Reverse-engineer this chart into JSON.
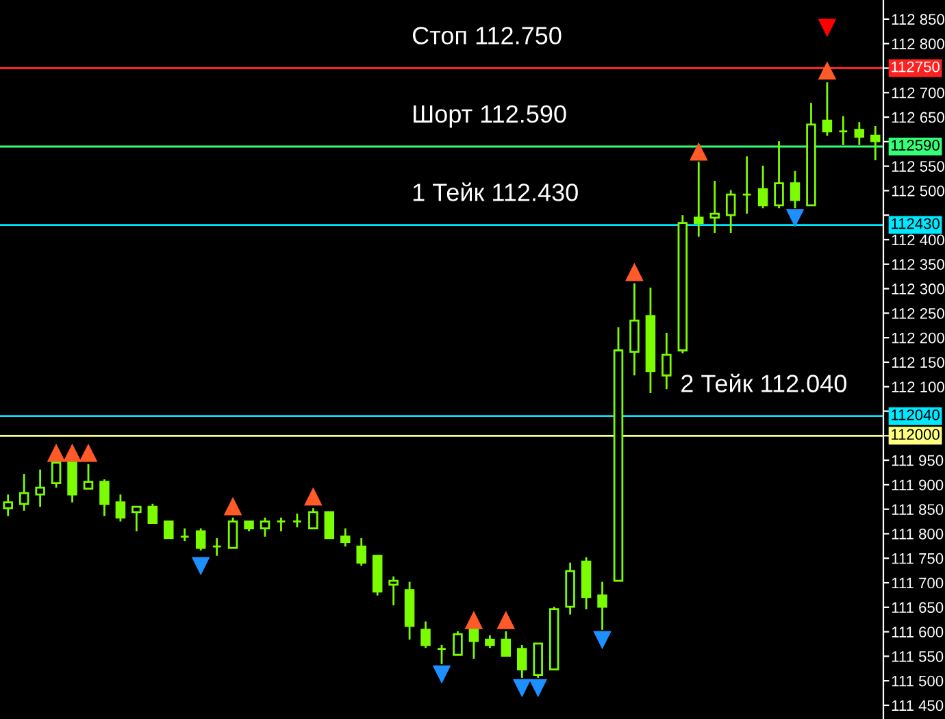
{
  "chart_data": {
    "type": "candlestick",
    "color": "#7cfc00",
    "categories": [
      null,
      null,
      null,
      null,
      null,
      null,
      null,
      null,
      null,
      null,
      null,
      null,
      null,
      null,
      null,
      null,
      null,
      null,
      null,
      null,
      null,
      null,
      null,
      null,
      null,
      null,
      null,
      null,
      null,
      null,
      null,
      null,
      null,
      null,
      null,
      null,
      null,
      null,
      null,
      null,
      null,
      null,
      null,
      null,
      null,
      null,
      null,
      null,
      null,
      null,
      null,
      null,
      null,
      null,
      null
    ],
    "ohlc": [
      [
        111852,
        111880,
        111836,
        111864
      ],
      [
        111861,
        111922,
        111847,
        111883
      ],
      [
        111880,
        111931,
        111855,
        111894
      ],
      [
        111903,
        111945,
        111894,
        111945
      ],
      [
        111945,
        111945,
        111864,
        111880
      ],
      [
        111892,
        111942,
        111892,
        111906
      ],
      [
        111906,
        111911,
        111836,
        111861
      ],
      [
        111864,
        111880,
        111825,
        111833
      ],
      [
        111844,
        111855,
        111805,
        111855
      ],
      [
        111855,
        111861,
        111822,
        111822
      ],
      [
        111825,
        111825,
        111791,
        111791
      ],
      [
        111794,
        111811,
        111785,
        111794
      ],
      [
        111805,
        111811,
        111766,
        111771
      ],
      [
        111774,
        111791,
        111755,
        111774
      ],
      [
        111771,
        111833,
        111771,
        111825
      ],
      [
        111825,
        111825,
        111805,
        111811
      ],
      [
        111811,
        111833,
        111794,
        111825
      ],
      [
        111825,
        111833,
        111805,
        111825
      ],
      [
        111825,
        111841,
        111813,
        111825
      ],
      [
        111811,
        111852,
        111811,
        111844
      ],
      [
        111844,
        111844,
        111791,
        111791
      ],
      [
        111794,
        111811,
        111774,
        111783
      ],
      [
        111774,
        111791,
        111735,
        111741
      ],
      [
        111755,
        111755,
        111674,
        111682
      ],
      [
        111696,
        111713,
        111654,
        111704
      ],
      [
        111685,
        111702,
        111584,
        111612
      ],
      [
        111604,
        111621,
        111567,
        111573
      ],
      [
        111565,
        111573,
        111534,
        111565
      ],
      [
        111553,
        111601,
        111553,
        111595
      ],
      [
        111604,
        111604,
        111545,
        111581
      ],
      [
        111584,
        111593,
        111567,
        111573
      ],
      [
        111584,
        111601,
        111551,
        111551
      ],
      [
        111565,
        111573,
        111506,
        111523
      ],
      [
        111512,
        111576,
        111506,
        111576
      ],
      [
        111523,
        111651,
        111523,
        111646
      ],
      [
        111651,
        111741,
        111635,
        111724
      ],
      [
        111743,
        111752,
        111646,
        111671
      ],
      [
        111674,
        111702,
        111604,
        111651
      ],
      [
        111704,
        112221,
        111704,
        112174
      ],
      [
        112171,
        112311,
        112123,
        112235
      ],
      [
        112244,
        112302,
        112087,
        112132
      ],
      [
        112123,
        112210,
        112095,
        112165
      ],
      [
        112174,
        112450,
        112168,
        112434
      ],
      [
        112445,
        112559,
        112406,
        112434
      ],
      [
        112445,
        112520,
        112414,
        112453
      ],
      [
        112450,
        112501,
        112414,
        112492
      ],
      [
        112492,
        112570,
        112453,
        112492
      ],
      [
        112503,
        112551,
        112464,
        112470
      ],
      [
        112470,
        112601,
        112464,
        112515
      ],
      [
        112515,
        112540,
        112464,
        112481
      ],
      [
        112470,
        112679,
        112470,
        112635
      ],
      [
        112643,
        112721,
        112612,
        112621
      ],
      [
        112621,
        112652,
        112593,
        112621
      ],
      [
        112624,
        112640,
        112593,
        112610
      ],
      [
        112612,
        112632,
        112562,
        112601
      ]
    ],
    "series": [
      {
        "type": "scatter",
        "marker": "triangle",
        "color": "#ff5a28",
        "values": [
          null,
          null,
          null,
          111964,
          111964,
          111964,
          null,
          null,
          null,
          null,
          null,
          null,
          null,
          null,
          111855,
          null,
          null,
          null,
          null,
          111875,
          null,
          null,
          null,
          null,
          null,
          null,
          null,
          null,
          null,
          111623,
          null,
          111623,
          null,
          null,
          null,
          null,
          null,
          null,
          null,
          112333,
          null,
          null,
          null,
          112579,
          null,
          null,
          null,
          null,
          null,
          null,
          null,
          112744,
          null,
          null,
          null
        ]
      },
      {
        "type": "scatter",
        "marker": "triangle_down",
        "color": "#1e8fff",
        "values": [
          null,
          null,
          null,
          null,
          null,
          null,
          null,
          null,
          null,
          null,
          null,
          null,
          111735,
          null,
          null,
          null,
          null,
          null,
          null,
          null,
          null,
          null,
          null,
          null,
          null,
          null,
          null,
          111514,
          null,
          null,
          null,
          null,
          111486,
          111486,
          null,
          null,
          null,
          111584,
          null,
          null,
          null,
          null,
          null,
          null,
          null,
          null,
          null,
          null,
          null,
          112445,
          null,
          null,
          null,
          null,
          null
        ]
      },
      {
        "type": "scatter",
        "marker": "triangle_down",
        "color": "#ff0000",
        "values": [
          null,
          null,
          null,
          null,
          null,
          null,
          null,
          null,
          null,
          null,
          null,
          null,
          null,
          null,
          null,
          null,
          null,
          null,
          null,
          null,
          null,
          null,
          null,
          null,
          null,
          null,
          null,
          null,
          null,
          null,
          null,
          null,
          null,
          null,
          null,
          null,
          null,
          null,
          null,
          null,
          null,
          null,
          null,
          null,
          null,
          null,
          null,
          null,
          null,
          null,
          null,
          112833,
          null,
          null,
          null
        ]
      }
    ],
    "ylim": [
      111422,
      112889
    ],
    "yticks": [
      {
        "value": 111450,
        "label": "111 450"
      },
      {
        "value": 111500,
        "label": "111 500"
      },
      {
        "value": 111550,
        "label": "111 550"
      },
      {
        "value": 111600,
        "label": "111 600"
      },
      {
        "value": 111650,
        "label": "111 650"
      },
      {
        "value": 111700,
        "label": "111 700"
      },
      {
        "value": 111750,
        "label": "111 750"
      },
      {
        "value": 111800,
        "label": "111 800"
      },
      {
        "value": 111850,
        "label": "111 850"
      },
      {
        "value": 111900,
        "label": "111 900"
      },
      {
        "value": 111950,
        "label": "111 950"
      },
      {
        "value": 112000,
        "label": null
      },
      {
        "value": 112050,
        "label": null
      },
      {
        "value": 112100,
        "label": "112 100"
      },
      {
        "value": 112150,
        "label": "112 150"
      },
      {
        "value": 112200,
        "label": "112 200"
      },
      {
        "value": 112250,
        "label": "112 250"
      },
      {
        "value": 112300,
        "label": "112 300"
      },
      {
        "value": 112350,
        "label": "112 350"
      },
      {
        "value": 112400,
        "label": "112 400"
      },
      {
        "value": 112450,
        "label": null
      },
      {
        "value": 112500,
        "label": "112 500"
      },
      {
        "value": 112550,
        "label": "112 550"
      },
      {
        "value": 112600,
        "label": null
      },
      {
        "value": 112650,
        "label": "112 650"
      },
      {
        "value": 112700,
        "label": "112 700"
      },
      {
        "value": 112750,
        "label": null
      },
      {
        "value": 112800,
        "label": "112 800"
      },
      {
        "value": 112850,
        "label": "112 850"
      }
    ],
    "tick_labels": "y",
    "ref_lines": [
      {
        "axis": "y",
        "value": 112750,
        "label": "112750",
        "color": "#ff2020"
      },
      {
        "axis": "y",
        "value": 112590,
        "label": "112590",
        "color": "#33ff77"
      },
      {
        "axis": "y",
        "value": 112430,
        "label": "112430",
        "color": "#00e8ff"
      },
      {
        "axis": "y",
        "value": 112040,
        "label": "112040",
        "color": "#00e8ff"
      },
      {
        "axis": "y",
        "value": 112000,
        "label": "112000",
        "color": "#ffff80"
      }
    ],
    "annotations": [
      {
        "text": "Стоп 112.750",
        "y": 112750
      },
      {
        "text": "Шорт 112.590",
        "y": 112590
      },
      {
        "text": "1 Тейк 112.430",
        "y": 112430
      },
      {
        "text": "2 Тейк 112.040",
        "y": 112040
      }
    ]
  }
}
